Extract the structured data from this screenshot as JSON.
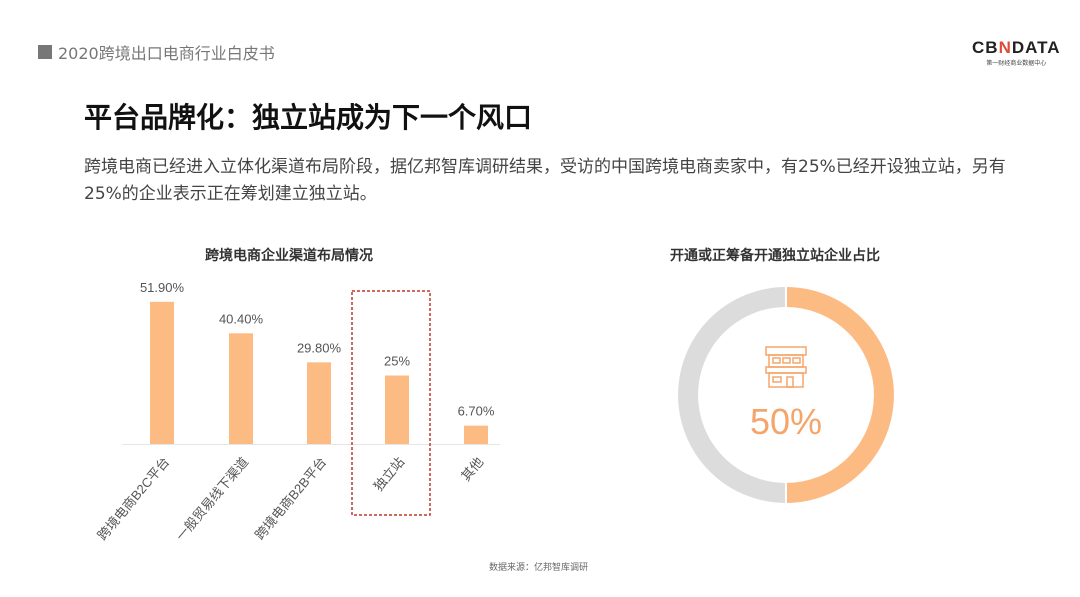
{
  "header": {
    "report": "2020跨境出口电商行业白皮书",
    "logo_text": "CBNDATA",
    "logo_sub": "第一财经商业数据中心"
  },
  "title": "平台品牌化：独立站成为下一个风口",
  "description": "跨境电商已经进入立体化渠道布局阶段，据亿邦智库调研结果，受访的中国跨境电商卖家中，有25%已经开设独立站，另有25%的企业表示正在筹划建立独立站。",
  "source": "数据来源：亿邦智库调研",
  "colors": {
    "bar": "#fdbb84",
    "highlight_box": "#c0392b",
    "donut_rest": "#dcdcdc",
    "accent": "#f5a56a"
  },
  "chart_data": [
    {
      "type": "bar",
      "title": "跨境电商企业渠道布局情况",
      "categories": [
        "跨境电商B2C平台",
        "一般贸易线下渠道",
        "跨境电商B2B平台",
        "独立站",
        "其他"
      ],
      "values": [
        51.9,
        40.4,
        29.8,
        25,
        6.7
      ],
      "labels": [
        "51.90%",
        "40.40%",
        "29.80%",
        "25%",
        "6.70%"
      ],
      "highlighted": "独立站",
      "ylim": [
        0,
        60
      ],
      "grid": false
    },
    {
      "type": "pie",
      "title": "开通或正筹备开通独立站企业占比",
      "style": "donut",
      "values": [
        50,
        50
      ],
      "center_label": "50%",
      "center_icon": "storefront-icon"
    }
  ]
}
